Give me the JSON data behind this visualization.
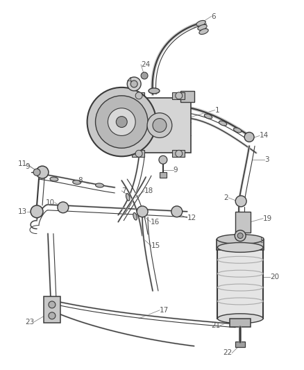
{
  "background_color": "#ffffff",
  "line_color": "#3a3a3a",
  "label_color": "#555555",
  "figsize": [
    4.38,
    5.33
  ],
  "dpi": 100,
  "lw_main": 1.2,
  "lw_thin": 0.7,
  "gray_fill": "#e8e8e8",
  "dark_fill": "#b0b0b0",
  "mid_fill": "#d0d0d0"
}
